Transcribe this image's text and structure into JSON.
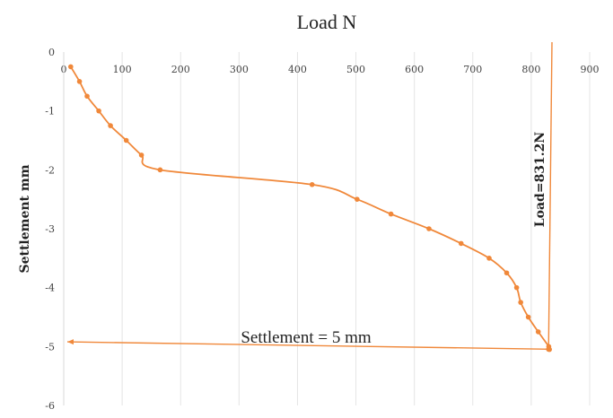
{
  "chart_data": {
    "type": "line",
    "title": "Load N",
    "xlabel": "",
    "ylabel": "Settlement mm",
    "xlim": [
      0,
      900
    ],
    "ylim": [
      -6,
      0
    ],
    "x_axis_position": "top",
    "grid": "vertical",
    "x_ticks": [
      0,
      100,
      200,
      300,
      400,
      500,
      600,
      700,
      800,
      900
    ],
    "y_ticks": [
      0,
      -1,
      -2,
      -3,
      -4,
      -5,
      -6
    ],
    "series_color": "#f0883a",
    "series": [
      {
        "x": [
          12,
          27,
          40,
          60,
          80,
          107,
          133,
          165,
          425,
          502,
          560,
          625,
          680,
          728,
          758,
          775,
          782,
          795,
          812,
          830,
          831.2
        ],
        "y": [
          -0.25,
          -0.5,
          -0.75,
          -1.0,
          -1.25,
          -1.5,
          -1.75,
          -2.0,
          -2.25,
          -2.5,
          -2.75,
          -3.0,
          -3.25,
          -3.5,
          -3.75,
          -4.0,
          -4.25,
          -4.5,
          -4.75,
          -5.0,
          -5.05
        ]
      }
    ],
    "annotations": {
      "load_line_text": "Load=831.2N",
      "load_line_x": 831.2,
      "settlement_line_text": "Settlement = 5 mm",
      "settlement_line_y": -5.0
    }
  }
}
